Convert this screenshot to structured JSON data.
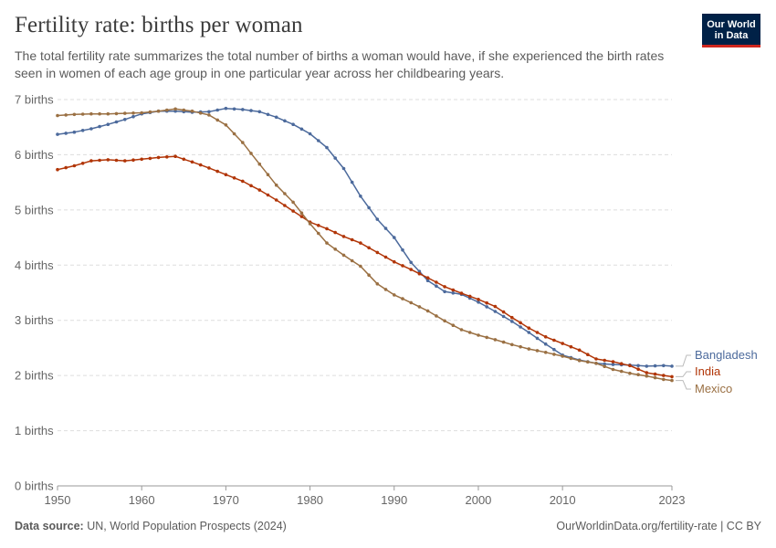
{
  "header": {
    "title": "Fertility rate: births per woman",
    "subtitle": "The total fertility rate summarizes the total number of births a woman would have, if she experienced the birth rates seen in women of each age group in one particular year across her childbearing years.",
    "logo_line1": "Our World",
    "logo_line2": "in Data"
  },
  "footer": {
    "source_label": "Data source:",
    "source_text": "UN, World Population Prospects (2024)",
    "url_text": "OurWorldinData.org/fertility-rate | CC BY"
  },
  "chart_data": {
    "type": "line",
    "title": "Fertility rate: births per woman",
    "xlim": [
      1950,
      2023
    ],
    "ylim": [
      0,
      7
    ],
    "y_ticks": [
      0,
      1,
      2,
      3,
      4,
      5,
      6,
      7
    ],
    "y_tick_labels": [
      "0 births",
      "1 births",
      "2 births",
      "3 births",
      "4 births",
      "5 births",
      "6 births",
      "7 births"
    ],
    "x_ticks": [
      1950,
      1960,
      1970,
      1980,
      1990,
      2000,
      2010,
      2023
    ],
    "x_tick_labels": [
      "1950",
      "1960",
      "1970",
      "1980",
      "1990",
      "2000",
      "2010",
      "2023"
    ],
    "grid": "horizontal dashed",
    "legend": "right, labels at line ends",
    "series": [
      {
        "name": "Bangladesh",
        "color": "#4c6a9c",
        "points": [
          [
            1950,
            6.37
          ],
          [
            1952,
            6.41
          ],
          [
            1954,
            6.47
          ],
          [
            1956,
            6.55
          ],
          [
            1958,
            6.64
          ],
          [
            1960,
            6.74
          ],
          [
            1962,
            6.79
          ],
          [
            1964,
            6.79
          ],
          [
            1966,
            6.77
          ],
          [
            1968,
            6.78
          ],
          [
            1970,
            6.84
          ],
          [
            1972,
            6.82
          ],
          [
            1974,
            6.78
          ],
          [
            1976,
            6.68
          ],
          [
            1978,
            6.55
          ],
          [
            1980,
            6.38
          ],
          [
            1982,
            6.13
          ],
          [
            1984,
            5.75
          ],
          [
            1986,
            5.25
          ],
          [
            1988,
            4.83
          ],
          [
            1990,
            4.5
          ],
          [
            1992,
            4.05
          ],
          [
            1994,
            3.72
          ],
          [
            1996,
            3.52
          ],
          [
            1998,
            3.47
          ],
          [
            2000,
            3.33
          ],
          [
            2002,
            3.16
          ],
          [
            2004,
            2.98
          ],
          [
            2006,
            2.78
          ],
          [
            2008,
            2.57
          ],
          [
            2010,
            2.37
          ],
          [
            2012,
            2.28
          ],
          [
            2014,
            2.22
          ],
          [
            2016,
            2.2
          ],
          [
            2018,
            2.19
          ],
          [
            2020,
            2.17
          ],
          [
            2022,
            2.18
          ],
          [
            2023,
            2.17
          ]
        ]
      },
      {
        "name": "India",
        "color": "#b13507",
        "points": [
          [
            1950,
            5.73
          ],
          [
            1952,
            5.8
          ],
          [
            1954,
            5.89
          ],
          [
            1956,
            5.91
          ],
          [
            1958,
            5.89
          ],
          [
            1960,
            5.92
          ],
          [
            1962,
            5.95
          ],
          [
            1964,
            5.97
          ],
          [
            1966,
            5.87
          ],
          [
            1968,
            5.76
          ],
          [
            1970,
            5.64
          ],
          [
            1972,
            5.52
          ],
          [
            1974,
            5.36
          ],
          [
            1976,
            5.18
          ],
          [
            1978,
            4.98
          ],
          [
            1980,
            4.78
          ],
          [
            1982,
            4.66
          ],
          [
            1984,
            4.52
          ],
          [
            1986,
            4.4
          ],
          [
            1988,
            4.23
          ],
          [
            1990,
            4.06
          ],
          [
            1992,
            3.92
          ],
          [
            1994,
            3.77
          ],
          [
            1996,
            3.61
          ],
          [
            1998,
            3.49
          ],
          [
            2000,
            3.38
          ],
          [
            2002,
            3.25
          ],
          [
            2004,
            3.05
          ],
          [
            2006,
            2.86
          ],
          [
            2008,
            2.7
          ],
          [
            2010,
            2.58
          ],
          [
            2012,
            2.46
          ],
          [
            2014,
            2.3
          ],
          [
            2016,
            2.25
          ],
          [
            2018,
            2.18
          ],
          [
            2020,
            2.05
          ],
          [
            2022,
            2.0
          ],
          [
            2023,
            1.98
          ]
        ]
      },
      {
        "name": "Mexico",
        "color": "#9a7043",
        "points": [
          [
            1950,
            6.71
          ],
          [
            1952,
            6.73
          ],
          [
            1954,
            6.74
          ],
          [
            1956,
            6.74
          ],
          [
            1958,
            6.75
          ],
          [
            1960,
            6.76
          ],
          [
            1962,
            6.79
          ],
          [
            1964,
            6.83
          ],
          [
            1966,
            6.79
          ],
          [
            1968,
            6.72
          ],
          [
            1970,
            6.54
          ],
          [
            1972,
            6.22
          ],
          [
            1974,
            5.83
          ],
          [
            1976,
            5.45
          ],
          [
            1978,
            5.14
          ],
          [
            1980,
            4.75
          ],
          [
            1982,
            4.4
          ],
          [
            1984,
            4.18
          ],
          [
            1986,
            3.98
          ],
          [
            1988,
            3.66
          ],
          [
            1990,
            3.46
          ],
          [
            1992,
            3.32
          ],
          [
            1994,
            3.17
          ],
          [
            1996,
            2.99
          ],
          [
            1998,
            2.83
          ],
          [
            2000,
            2.73
          ],
          [
            2002,
            2.65
          ],
          [
            2004,
            2.56
          ],
          [
            2006,
            2.48
          ],
          [
            2008,
            2.42
          ],
          [
            2010,
            2.35
          ],
          [
            2012,
            2.27
          ],
          [
            2014,
            2.22
          ],
          [
            2016,
            2.11
          ],
          [
            2018,
            2.04
          ],
          [
            2020,
            1.99
          ],
          [
            2022,
            1.93
          ],
          [
            2023,
            1.91
          ]
        ]
      }
    ]
  }
}
